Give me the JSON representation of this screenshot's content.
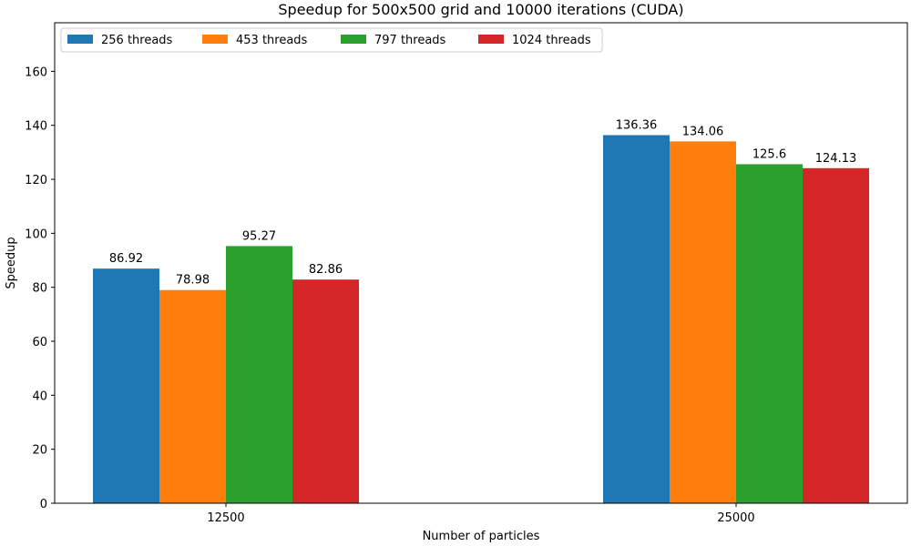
{
  "chart_data": {
    "type": "bar",
    "title": "Speedup for 500x500 grid and 10000 iterations (CUDA)",
    "xlabel": "Number of particles",
    "ylabel": "Speedup",
    "categories": [
      "12500",
      "25000"
    ],
    "series": [
      {
        "name": "256 threads",
        "color": "#1f77b4",
        "values": [
          86.92,
          136.36
        ],
        "labels": [
          "86.92",
          "136.36"
        ]
      },
      {
        "name": "453 threads",
        "color": "#ff7f0e",
        "values": [
          78.98,
          134.06
        ],
        "labels": [
          "78.98",
          "134.06"
        ]
      },
      {
        "name": "797 threads",
        "color": "#2ca02c",
        "values": [
          95.27,
          125.6
        ],
        "labels": [
          "95.27",
          "125.6"
        ]
      },
      {
        "name": "1024 threads",
        "color": "#d62728",
        "values": [
          82.86,
          124.13
        ],
        "labels": [
          "82.86",
          "124.13"
        ]
      }
    ],
    "ylim": [
      0,
      178
    ],
    "yticks": [
      "0",
      "20",
      "40",
      "60",
      "80",
      "100",
      "120",
      "140",
      "160"
    ],
    "grid": false,
    "legend_position": "top-left"
  }
}
